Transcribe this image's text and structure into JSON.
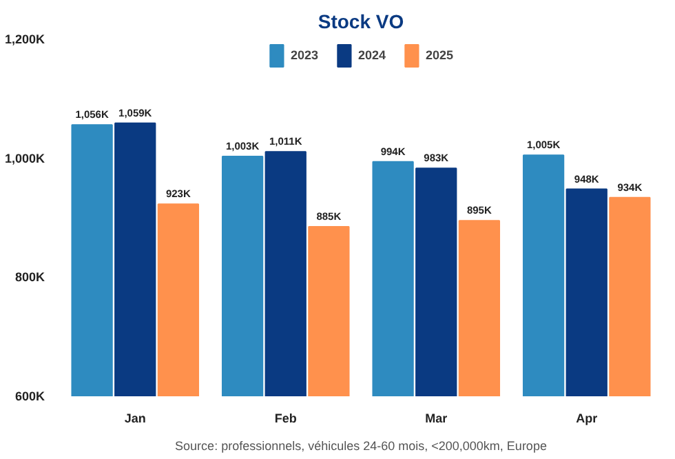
{
  "chart_data": {
    "type": "bar",
    "title": "Stock VO",
    "categories": [
      "Jan",
      "Feb",
      "Mar",
      "Apr"
    ],
    "series": [
      {
        "name": "2023",
        "color": "#2e8bc0",
        "values": [
          1056,
          1003,
          994,
          1005
        ],
        "value_labels": [
          "1,056K",
          "1,003K",
          "994K",
          "1,005K"
        ]
      },
      {
        "name": "2024",
        "color": "#0a3a82",
        "values": [
          1059,
          1011,
          983,
          948
        ],
        "value_labels": [
          "1,059K",
          "1,011K",
          "983K",
          "948K"
        ]
      },
      {
        "name": "2025",
        "color": "#ff914d",
        "values": [
          923,
          885,
          895,
          934
        ],
        "value_labels": [
          "923K",
          "885K",
          "895K",
          "934K"
        ]
      }
    ],
    "ylim": [
      600,
      1200
    ],
    "yticks": [
      {
        "value": 600,
        "label": "600K"
      },
      {
        "value": 800,
        "label": "800K"
      },
      {
        "value": 1000,
        "label": "1,000K"
      },
      {
        "value": 1200,
        "label": "1,200K"
      }
    ],
    "grid": false,
    "legend": "top",
    "annotations": [
      "Source: professionnels, véhicules 24-60 mois, <200,000km, Europe"
    ]
  }
}
